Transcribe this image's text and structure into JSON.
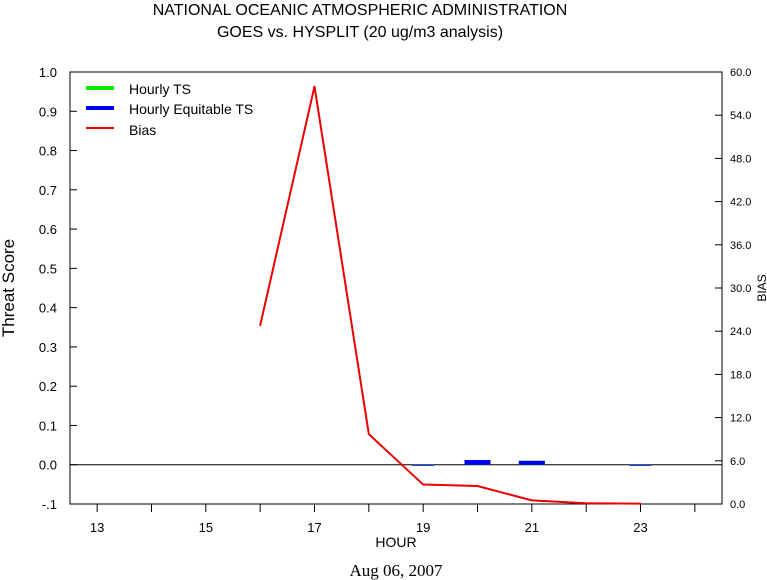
{
  "chart_data": {
    "type": "line",
    "title": "NATIONAL OCEANIC ATMOSPHERIC ADMINISTRATION",
    "subtitle": "GOES vs. HYSPLIT  (20 ug/m3 analysis)",
    "xlabel": "HOUR",
    "ylabel": "Threat Score",
    "y2label": "BIAS",
    "footer": "Aug 06, 2007",
    "xlim": [
      12.5,
      24.5
    ],
    "ylim": [
      -0.1,
      1.0
    ],
    "y2lim": [
      0.0,
      60.0
    ],
    "x_ticks": [
      13,
      14,
      15,
      16,
      17,
      18,
      19,
      20,
      21,
      22,
      23,
      24
    ],
    "x_tick_labels": [
      "13",
      "",
      "15",
      "",
      "17",
      "",
      "19",
      "",
      "21",
      "",
      "23",
      ""
    ],
    "y_ticks": [
      "1.0",
      "0.9",
      "0.8",
      "0.7",
      "0.6",
      "0.5",
      "0.4",
      "0.3",
      "0.2",
      "0.1",
      "0.0",
      "-.1"
    ],
    "y2_ticks": [
      "60.0",
      "54.0",
      "48.0",
      "42.0",
      "36.0",
      "30.0",
      "24.0",
      "18.0",
      "12.0",
      "6.0",
      "0.0"
    ],
    "legend": [
      {
        "name": "Hourly TS",
        "color": "#00ee00"
      },
      {
        "name": "Hourly Equitable TS",
        "color": "#0000ee"
      },
      {
        "name": "Bias",
        "color": "#ee0000"
      }
    ],
    "series": [
      {
        "name": "Hourly TS",
        "axis": "left",
        "color": "#00ee00",
        "x": [
          19,
          20,
          21,
          23
        ],
        "values": [
          0.0,
          0.012,
          0.01,
          0.0
        ]
      },
      {
        "name": "Hourly Equitable TS",
        "axis": "left",
        "color": "#0000ee",
        "x": [
          19,
          20,
          21,
          23
        ],
        "values": [
          0.0,
          0.012,
          0.01,
          0.0
        ]
      },
      {
        "name": "Bias",
        "axis": "right",
        "color": "#ee0000",
        "x": [
          16,
          17,
          18,
          19,
          20,
          21,
          22,
          23
        ],
        "values": [
          24.8,
          58.0,
          9.7,
          2.7,
          2.5,
          0.5,
          0.1,
          0.05
        ]
      }
    ]
  }
}
